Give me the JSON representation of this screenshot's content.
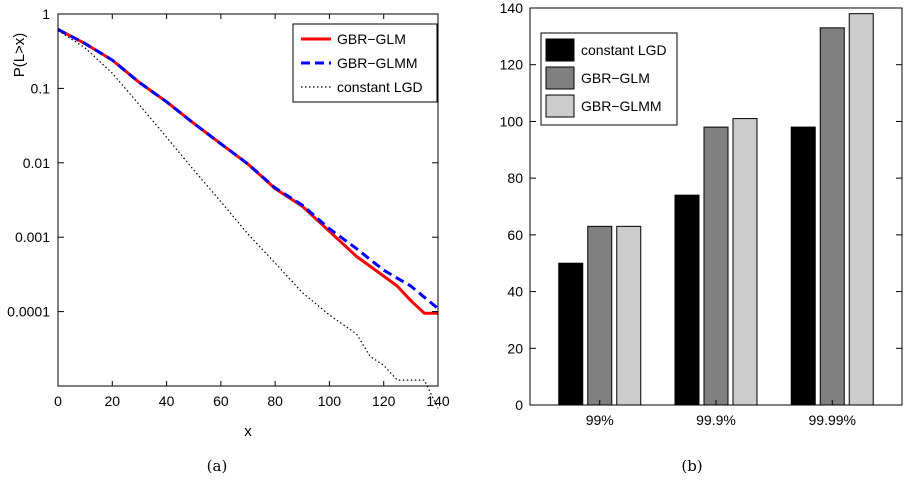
{
  "chart_data": [
    {
      "type": "line",
      "caption": "(a)",
      "xlabel": "x",
      "ylabel": "P(L>x)",
      "yscale": "log",
      "xlim": [
        0,
        140
      ],
      "ylim": [
        1e-05,
        1
      ],
      "xticks": [
        "0",
        "20",
        "40",
        "60",
        "80",
        "100",
        "120",
        "140"
      ],
      "yticks": [
        {
          "value": 1,
          "label": "1"
        },
        {
          "value": 0.1,
          "label": "0.1"
        },
        {
          "value": 0.01,
          "label": "0.01"
        },
        {
          "value": 0.001,
          "label": "0.001"
        },
        {
          "value": 0.0001,
          "label": "0.0001"
        }
      ],
      "legend_position": "top-right",
      "series": [
        {
          "name": "GBR−GLM",
          "color": "#ff0000",
          "style": "solid",
          "points": [
            [
              0,
              0.62
            ],
            [
              10,
              0.4
            ],
            [
              20,
              0.24
            ],
            [
              30,
              0.12
            ],
            [
              40,
              0.066
            ],
            [
              50,
              0.034
            ],
            [
              60,
              0.018
            ],
            [
              70,
              0.0096
            ],
            [
              80,
              0.0045
            ],
            [
              90,
              0.0026
            ],
            [
              100,
              0.0012
            ],
            [
              110,
              0.00055
            ],
            [
              120,
              0.0003
            ],
            [
              125,
              0.00022
            ],
            [
              130,
              0.00014
            ],
            [
              135,
              9.5e-05
            ],
            [
              140,
              9.5e-05
            ]
          ]
        },
        {
          "name": "GBR−GLMM",
          "color": "#0000ff",
          "style": "dashed",
          "points": [
            [
              0,
              0.62
            ],
            [
              10,
              0.4
            ],
            [
              20,
              0.24
            ],
            [
              30,
              0.12
            ],
            [
              40,
              0.066
            ],
            [
              50,
              0.034
            ],
            [
              60,
              0.018
            ],
            [
              70,
              0.0096
            ],
            [
              80,
              0.0046
            ],
            [
              90,
              0.0027
            ],
            [
              100,
              0.0013
            ],
            [
              110,
              0.0007
            ],
            [
              120,
              0.00036
            ],
            [
              130,
              0.00022
            ],
            [
              140,
              0.00011
            ]
          ]
        },
        {
          "name": "constant LGD",
          "color": "#000000",
          "style": "dotted",
          "points": [
            [
              0,
              0.6
            ],
            [
              10,
              0.35
            ],
            [
              20,
              0.16
            ],
            [
              30,
              0.06
            ],
            [
              40,
              0.022
            ],
            [
              50,
              0.008
            ],
            [
              60,
              0.003
            ],
            [
              70,
              0.0011
            ],
            [
              80,
              0.00045
            ],
            [
              90,
              0.00018
            ],
            [
              100,
              9e-05
            ],
            [
              110,
              5e-05
            ],
            [
              115,
              2.5e-05
            ],
            [
              120,
              1.9e-05
            ],
            [
              125,
              1.2e-05
            ],
            [
              130,
              1.2e-05
            ],
            [
              135,
              1.2e-05
            ],
            [
              140,
              5e-06
            ]
          ]
        }
      ]
    },
    {
      "type": "bar",
      "caption": "(b)",
      "categories": [
        "99%",
        "99.9%",
        "99.99%"
      ],
      "ylim": [
        0,
        140
      ],
      "yticks": [
        "0",
        "20",
        "40",
        "60",
        "80",
        "100",
        "120",
        "140"
      ],
      "legend_position": "top-left",
      "series": [
        {
          "name": "constant LGD",
          "color": "#000000",
          "values": [
            50,
            74,
            98
          ]
        },
        {
          "name": "GBR−GLM",
          "color": "#808080",
          "values": [
            63,
            98,
            133
          ]
        },
        {
          "name": "GBR−GLMM",
          "color": "#cccccc",
          "values": [
            63,
            101,
            138
          ]
        }
      ]
    }
  ]
}
